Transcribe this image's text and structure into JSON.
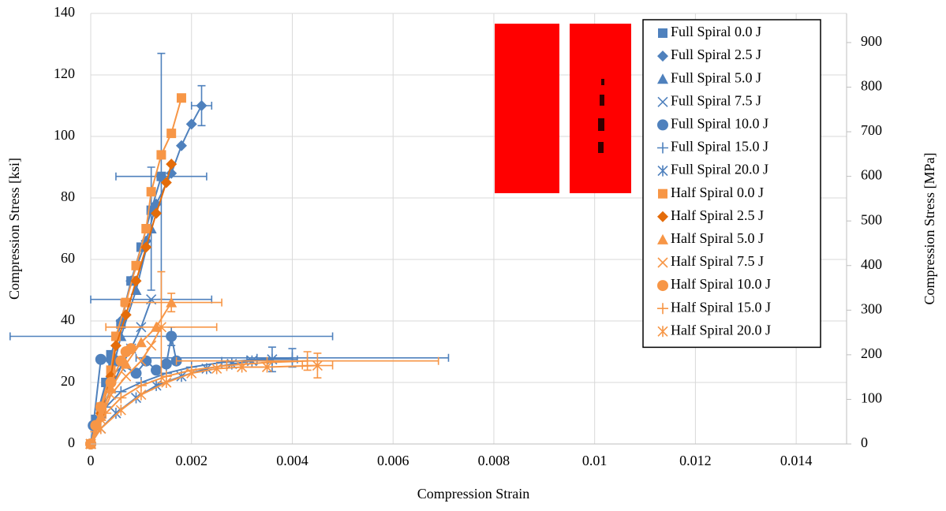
{
  "chart_data": {
    "type": "line",
    "x_label": "Compression Strain",
    "y_label": "Compression Stress [ksi]",
    "y2_label": "Compression Stress [MPa]",
    "xlim": [
      0,
      0.015
    ],
    "xticks": [
      0,
      0.002,
      0.004,
      0.006,
      0.008,
      0.01,
      0.012,
      0.014
    ],
    "ylim": [
      0,
      140
    ],
    "yticks": [
      0,
      20,
      40,
      60,
      80,
      100,
      120,
      140
    ],
    "y2lim": [
      0,
      965.3
    ],
    "y2ticks": [
      0,
      100,
      200,
      300,
      400,
      500,
      600,
      700,
      800,
      900
    ],
    "grid": true,
    "legend": "top-right",
    "series": [
      {
        "name": "Full Spiral 0.0 J",
        "color": "#4f81bd",
        "marker": "square",
        "x": [
          0,
          0.0001,
          0.0003,
          0.0004,
          0.0006,
          0.0008,
          0.001,
          0.0012,
          0.0014
        ],
        "values": [
          0,
          8,
          20,
          29,
          39,
          53,
          64,
          76,
          87
        ],
        "xerr": [
          null,
          null,
          null,
          null,
          null,
          null,
          null,
          null,
          0.0009
        ],
        "yerr": [
          null,
          null,
          null,
          null,
          null,
          null,
          null,
          null,
          40
        ]
      },
      {
        "name": "Full Spiral 2.5 J",
        "color": "#4f81bd",
        "marker": "diamond",
        "x": [
          0,
          0.0002,
          0.0004,
          0.0006,
          0.0008,
          0.0011,
          0.0013,
          0.0016,
          0.0018,
          0.002,
          0.0022
        ],
        "values": [
          0,
          12,
          27,
          40,
          53,
          66,
          78,
          88,
          97,
          104,
          110
        ],
        "xerr": [
          null,
          null,
          null,
          null,
          null,
          null,
          null,
          null,
          null,
          null,
          0.0002
        ],
        "yerr": [
          null,
          null,
          null,
          null,
          null,
          null,
          null,
          null,
          null,
          null,
          6.5
        ]
      },
      {
        "name": "Full Spiral 5.0 J",
        "color": "#4f81bd",
        "marker": "triangle",
        "x": [
          0,
          0.0002,
          0.0004,
          0.0006,
          0.0009,
          0.0012
        ],
        "values": [
          0,
          10,
          22,
          35,
          50,
          70
        ],
        "xerr": [
          null,
          null,
          null,
          null,
          null,
          null
        ],
        "yerr": [
          null,
          null,
          null,
          null,
          null,
          20
        ]
      },
      {
        "name": "Full Spiral 7.5 J",
        "color": "#4f81bd",
        "marker": "x",
        "x": [
          0,
          0.0002,
          0.0004,
          0.0006,
          0.0008,
          0.001,
          0.0012
        ],
        "values": [
          0,
          10,
          18,
          25,
          31,
          38,
          47
        ],
        "xerr": [
          null,
          null,
          null,
          null,
          null,
          null,
          0.0012
        ],
        "yerr": [
          null,
          null,
          null,
          null,
          null,
          null,
          null
        ]
      },
      {
        "name": "Full Spiral 10.0 J",
        "color": "#4f81bd",
        "marker": "circle",
        "x": [
          0,
          5e-05,
          0.0002,
          0.0005,
          0.0009,
          0.0011,
          0.0013,
          0.0015,
          0.0016,
          0.0017
        ],
        "values": [
          0,
          6,
          27.5,
          27,
          23,
          27,
          24,
          26,
          35,
          27
        ],
        "xerr": [
          null,
          null,
          null,
          null,
          null,
          null,
          null,
          null,
          0.0032,
          null
        ],
        "yerr": [
          null,
          null,
          null,
          null,
          null,
          null,
          null,
          null,
          3,
          null
        ]
      },
      {
        "name": "Full Spiral 15.0 J",
        "color": "#4f81bd",
        "marker": "plus",
        "x": [
          0,
          0.0001,
          0.0003,
          0.0006,
          0.001,
          0.0015,
          0.002,
          0.0026,
          0.0033,
          0.004
        ],
        "values": [
          0,
          5,
          12,
          17,
          20,
          23,
          25,
          26.5,
          27.5,
          28
        ],
        "xerr": [
          null,
          null,
          null,
          null,
          null,
          null,
          null,
          null,
          null,
          0.0031
        ],
        "yerr": [
          null,
          null,
          null,
          null,
          null,
          null,
          null,
          null,
          null,
          3
        ]
      },
      {
        "name": "Full Spiral 20.0 J",
        "color": "#4f81bd",
        "marker": "asterisk",
        "x": [
          0,
          0.0002,
          0.0005,
          0.0009,
          0.0013,
          0.0018,
          0.0023,
          0.0028,
          0.0032,
          0.0036
        ],
        "values": [
          0,
          5,
          10,
          15,
          19,
          22,
          24.5,
          26,
          27,
          27.5
        ],
        "xerr": [
          null,
          null,
          null,
          null,
          null,
          null,
          null,
          null,
          null,
          0.0005
        ],
        "yerr": [
          null,
          null,
          null,
          null,
          null,
          null,
          null,
          null,
          null,
          4
        ]
      },
      {
        "name": "Half Spiral 0.0 J",
        "color": "#f79646",
        "marker": "square",
        "x": [
          0,
          0.0002,
          0.0004,
          0.0005,
          0.0007,
          0.0009,
          0.0011,
          0.0012,
          0.0014,
          0.0016,
          0.0018
        ],
        "values": [
          0,
          12,
          24,
          35,
          46,
          58,
          70,
          82,
          94,
          101,
          112.5
        ]
      },
      {
        "name": "Half Spiral 2.5 J",
        "color": "#e46c0a",
        "marker": "diamond",
        "x": [
          0,
          0.0002,
          0.0004,
          0.0005,
          0.0007,
          0.0009,
          0.0011,
          0.0013,
          0.0015,
          0.0016
        ],
        "values": [
          0,
          10,
          22,
          32,
          42,
          53,
          64,
          75,
          85,
          91
        ]
      },
      {
        "name": "Half Spiral 5.0 J",
        "color": "#f79646",
        "marker": "triangle",
        "x": [
          0,
          0.0002,
          0.0004,
          0.0007,
          0.001,
          0.0013,
          0.0016
        ],
        "values": [
          0,
          9,
          18,
          26,
          33,
          38,
          46
        ],
        "xerr": [
          null,
          null,
          null,
          null,
          null,
          null,
          0.001
        ],
        "yerr": [
          null,
          null,
          null,
          null,
          null,
          null,
          3
        ]
      },
      {
        "name": "Half Spiral 7.5 J",
        "color": "#f79646",
        "marker": "x",
        "x": [
          0,
          0.0002,
          0.0004,
          0.0007,
          0.001,
          0.0012,
          0.0014
        ],
        "values": [
          0,
          8,
          16,
          22,
          27,
          32,
          38
        ],
        "xerr": [
          null,
          null,
          null,
          null,
          null,
          null,
          0.0011
        ],
        "yerr": [
          null,
          null,
          null,
          null,
          null,
          null,
          18
        ]
      },
      {
        "name": "Half Spiral 10.0 J",
        "color": "#f79646",
        "marker": "circle",
        "x": [
          0,
          0.0001,
          0.0002,
          0.0004,
          0.0006,
          0.0007,
          0.0008
        ],
        "values": [
          0,
          6,
          12,
          20,
          27,
          30,
          31
        ]
      },
      {
        "name": "Half Spiral 15.0 J",
        "color": "#f79646",
        "marker": "plus",
        "x": [
          0,
          0.0001,
          0.0003,
          0.0006,
          0.001,
          0.0015,
          0.002,
          0.0027,
          0.0035,
          0.0043
        ],
        "values": [
          0,
          4,
          10,
          15,
          19,
          22,
          24,
          25.5,
          26.5,
          27
        ],
        "xerr": [
          null,
          null,
          null,
          null,
          null,
          null,
          null,
          null,
          null,
          0.0026
        ],
        "yerr": [
          null,
          null,
          null,
          null,
          null,
          null,
          null,
          null,
          null,
          3
        ]
      },
      {
        "name": "Half Spiral 20.0 J",
        "color": "#f79646",
        "marker": "asterisk",
        "x": [
          0,
          0.0002,
          0.0006,
          0.001,
          0.0015,
          0.002,
          0.0025,
          0.003,
          0.0035,
          0.0045
        ],
        "values": [
          0,
          5,
          11,
          16,
          20,
          23,
          24.5,
          25,
          25,
          25.5
        ],
        "xerr": [
          null,
          null,
          null,
          null,
          null,
          null,
          null,
          null,
          null,
          0.0003
        ],
        "yerr": [
          null,
          null,
          null,
          null,
          null,
          null,
          null,
          null,
          null,
          4
        ]
      }
    ]
  }
}
